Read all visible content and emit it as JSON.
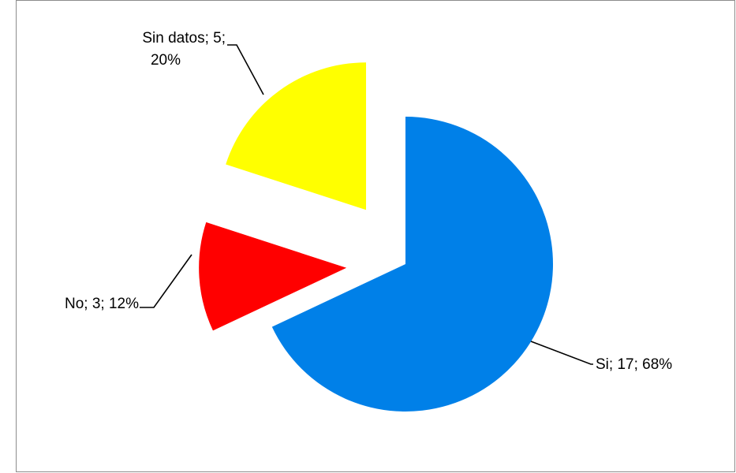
{
  "chart_data": {
    "type": "pie",
    "title": "",
    "legend": "none",
    "slices": [
      {
        "name": "Si",
        "value": 17,
        "percent": 68,
        "color": "#0080E8",
        "label": "Si; 17; 68%"
      },
      {
        "name": "No",
        "value": 3,
        "percent": 12,
        "color": "#FF0000",
        "label": "No; 3; 12%"
      },
      {
        "name": "Sin datos",
        "value": 5,
        "percent": 20,
        "color": "#FFFF00",
        "label_lines": [
          "Sin datos; 5;",
          "20%"
        ]
      }
    ]
  }
}
